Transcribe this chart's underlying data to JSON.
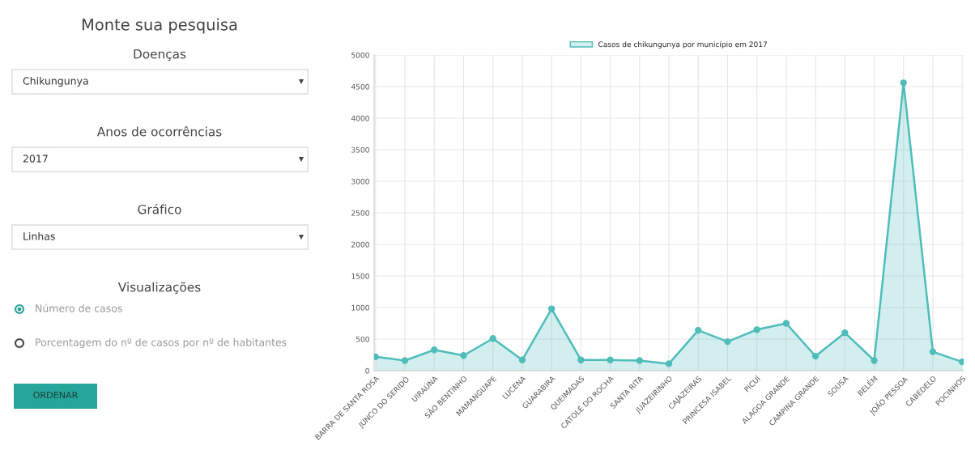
{
  "chart_data": {
    "type": "area",
    "categories": [
      "BARRA DE SANTA ROSA",
      "JUNCO DO SERIDÓ",
      "UIRAÚNA",
      "SÃO BENTINHO",
      "MAMANGUAPE",
      "LUCENA",
      "GUARABIRA",
      "QUEIMADAS",
      "CATOLÉ DO ROCHA",
      "SANTA RITA",
      "JUAZEIRINHO",
      "CAJAZEIRAS",
      "PRINCESA ISABEL",
      "PICUÍ",
      "ALAGOA GRANDE",
      "CAMPINA GRANDE",
      "SOUSA",
      "BELÉM",
      "JOÃO PESSOA",
      "CABEDELO",
      "POCINHOS"
    ],
    "series": [
      {
        "name": "Casos de chikungunya por município em 2017",
        "color": "#4fbdba",
        "values": [
          220,
          160,
          330,
          240,
          510,
          170,
          980,
          170,
          170,
          160,
          110,
          640,
          460,
          650,
          750,
          230,
          600,
          160,
          4560,
          300,
          140
        ]
      }
    ],
    "ylim": [
      0,
      5000
    ],
    "yticks": [
      0,
      500,
      1000,
      1500,
      2000,
      2500,
      3000,
      3500,
      4000,
      4500,
      5000
    ],
    "grid": true,
    "legend": "top",
    "marker": "circle",
    "annotations": [
      "Monte sua pesquisa",
      "Doenças",
      "Chikungunya",
      "Anos de ocorrências",
      "2017",
      "Gráfico",
      "Linhas",
      "Visualizações",
      "Número de casos",
      "Porcentagem do nº de casos por nº de habitantes",
      "ORDENAR"
    ]
  }
}
